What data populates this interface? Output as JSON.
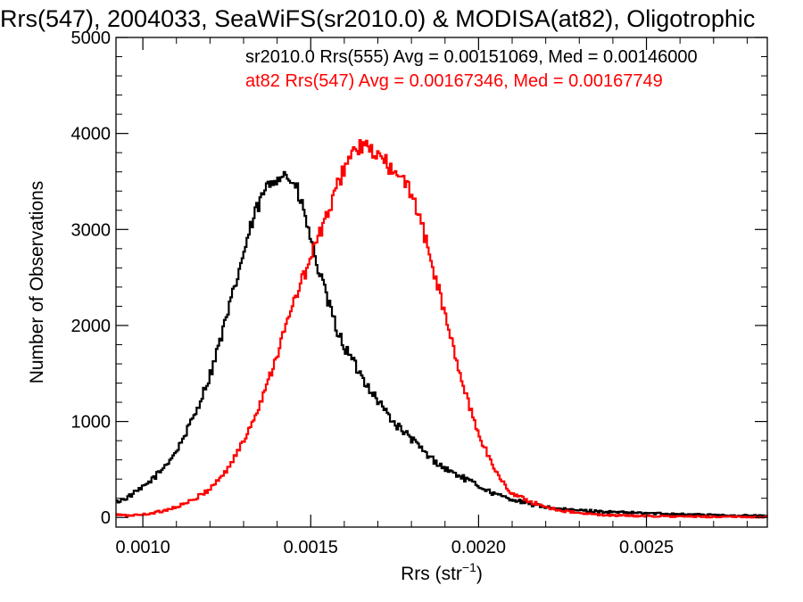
{
  "chart_data": {
    "type": "line",
    "title": "Rrs(547), 2004033, SeaWiFS(sr2010.0) & MODISA(at82), Oligotrophic",
    "xlabel": "Rrs (str",
    "xlabel_sup": "−1",
    "xlabel_close": ")",
    "ylabel": "Number of Observations",
    "xlim": [
      0.00092,
      0.00286
    ],
    "ylim": [
      -100,
      5000
    ],
    "x_ticks": [
      0.001,
      0.0015,
      0.002,
      0.0025
    ],
    "x_tick_labels": [
      "0.0010",
      "0.0015",
      "0.0020",
      "0.0025"
    ],
    "y_ticks": [
      0,
      1000,
      2000,
      3000,
      4000,
      5000
    ],
    "y_tick_labels": [
      "0",
      "1000",
      "2000",
      "3000",
      "4000",
      "5000"
    ],
    "grid": false,
    "legend_placement": "top-right",
    "series": [
      {
        "name": "sr2010.0 Rrs(555) Avg = 0.00151069, Med = 0.00146000",
        "color": "#000000",
        "x": [
          0.00092,
          0.00095,
          0.001,
          0.00105,
          0.0011,
          0.00115,
          0.0012,
          0.00125,
          0.0013,
          0.00133,
          0.00136,
          0.00138,
          0.0014,
          0.00142,
          0.00144,
          0.00146,
          0.00148,
          0.0015,
          0.00152,
          0.00154,
          0.00156,
          0.00158,
          0.0016,
          0.00165,
          0.0017,
          0.00175,
          0.0018,
          0.00185,
          0.0019,
          0.00195,
          0.002,
          0.00205,
          0.0021,
          0.00215,
          0.0022,
          0.00225,
          0.0023,
          0.00235,
          0.0024,
          0.00245,
          0.0025,
          0.00255,
          0.0026,
          0.00265,
          0.0027,
          0.00275,
          0.0028,
          0.00286
        ],
        "y": [
          160,
          200,
          310,
          470,
          690,
          1030,
          1480,
          2080,
          2750,
          3120,
          3380,
          3480,
          3560,
          3580,
          3520,
          3400,
          3180,
          2900,
          2620,
          2380,
          2150,
          1940,
          1780,
          1480,
          1220,
          980,
          820,
          640,
          510,
          420,
          330,
          240,
          190,
          140,
          110,
          85,
          75,
          65,
          55,
          50,
          45,
          40,
          35,
          30,
          25,
          22,
          20,
          15
        ]
      },
      {
        "name": "at82 Rrs(547) Avg = 0.00167346, Med = 0.00167749",
        "color": "#ff0000",
        "x": [
          0.00092,
          0.00095,
          0.001,
          0.00105,
          0.0011,
          0.00115,
          0.0012,
          0.00125,
          0.0013,
          0.00135,
          0.0014,
          0.00143,
          0.00146,
          0.00149,
          0.00152,
          0.00155,
          0.00158,
          0.0016,
          0.00162,
          0.00164,
          0.00166,
          0.00168,
          0.0017,
          0.00172,
          0.00174,
          0.00176,
          0.00178,
          0.0018,
          0.00182,
          0.00184,
          0.00186,
          0.00188,
          0.0019,
          0.00192,
          0.00194,
          0.00196,
          0.00198,
          0.002,
          0.00202,
          0.00204,
          0.00206,
          0.00208,
          0.0021,
          0.00215,
          0.0022,
          0.00225,
          0.0023,
          0.00235,
          0.0024,
          0.00245,
          0.0025,
          0.0026,
          0.0027,
          0.0028,
          0.00286
        ],
        "y": [
          30,
          20,
          30,
          60,
          110,
          180,
          300,
          490,
          790,
          1200,
          1700,
          2030,
          2350,
          2600,
          2900,
          3150,
          3450,
          3650,
          3780,
          3840,
          3860,
          3820,
          3760,
          3720,
          3620,
          3530,
          3480,
          3400,
          3180,
          2920,
          2650,
          2400,
          2100,
          1830,
          1560,
          1300,
          1080,
          880,
          710,
          560,
          430,
          330,
          250,
          170,
          110,
          70,
          45,
          30,
          22,
          18,
          15,
          10,
          8,
          6,
          5
        ]
      }
    ]
  }
}
